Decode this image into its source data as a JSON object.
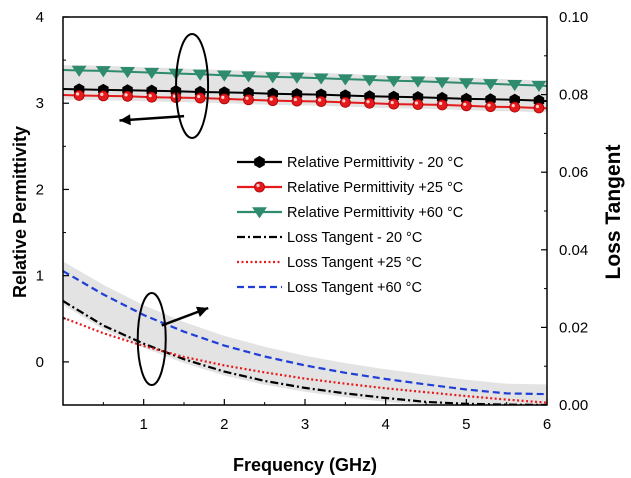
{
  "chart_data": {
    "type": "line",
    "xlabel": "Frequency (GHz)",
    "ylabel_left": "Relative Permittivity",
    "ylabel_right": "Loss Tangent",
    "xlim": [
      0,
      6
    ],
    "ylim_left": [
      -0.5,
      4
    ],
    "ylim_right": [
      0,
      0.1
    ],
    "x_ticks": [
      "1",
      "2",
      "3",
      "4",
      "5",
      "6"
    ],
    "y_left_ticks": [
      "0",
      "1",
      "2",
      "3",
      "4"
    ],
    "y_right_ticks": [
      "0.00",
      "0.02",
      "0.04",
      "0.06",
      "0.08",
      "0.10"
    ],
    "grid": false,
    "legend_position": "center-right",
    "series": [
      {
        "name": "Relative Permittivity - 20 °C",
        "axis": "left",
        "color": "#000000",
        "style": "solid",
        "marker": "hexagon",
        "x": [
          0.2,
          0.5,
          0.8,
          1.1,
          1.4,
          1.7,
          2.0,
          2.3,
          2.6,
          2.9,
          3.2,
          3.5,
          3.8,
          4.1,
          4.4,
          4.7,
          5.0,
          5.3,
          5.6,
          5.9
        ],
        "values": [
          3.16,
          3.155,
          3.15,
          3.145,
          3.14,
          3.13,
          3.125,
          3.12,
          3.11,
          3.105,
          3.1,
          3.09,
          3.08,
          3.075,
          3.07,
          3.06,
          3.05,
          3.045,
          3.04,
          3.03
        ]
      },
      {
        "name": "Relative Permittivity +25 °C",
        "axis": "left",
        "color": "#e41a1c",
        "style": "solid",
        "marker": "circle",
        "x": [
          0.2,
          0.5,
          0.8,
          1.1,
          1.4,
          1.7,
          2.0,
          2.3,
          2.6,
          2.9,
          3.2,
          3.5,
          3.8,
          4.1,
          4.4,
          4.7,
          5.0,
          5.3,
          5.6,
          5.9
        ],
        "values": [
          3.09,
          3.085,
          3.08,
          3.07,
          3.065,
          3.06,
          3.05,
          3.04,
          3.03,
          3.025,
          3.02,
          3.01,
          3.0,
          2.99,
          2.985,
          2.98,
          2.97,
          2.96,
          2.955,
          2.945
        ]
      },
      {
        "name": "Relative Permittivity +60 °C",
        "axis": "left",
        "color": "#2e8b6e",
        "style": "solid",
        "marker": "triangle-down",
        "x": [
          0.2,
          0.5,
          0.8,
          1.1,
          1.4,
          1.7,
          2.0,
          2.3,
          2.6,
          2.9,
          3.2,
          3.5,
          3.8,
          4.1,
          4.4,
          4.7,
          5.0,
          5.3,
          5.6,
          5.9
        ],
        "values": [
          3.38,
          3.375,
          3.365,
          3.355,
          3.345,
          3.335,
          3.325,
          3.315,
          3.305,
          3.3,
          3.29,
          3.28,
          3.27,
          3.26,
          3.255,
          3.245,
          3.235,
          3.225,
          3.215,
          3.205
        ]
      },
      {
        "name": "Loss Tangent - 20 °C",
        "axis": "right",
        "color": "#000000",
        "style": "dashdot",
        "marker": "none",
        "x": [
          0,
          0.5,
          1.0,
          1.5,
          2.0,
          2.5,
          3.0,
          3.5,
          4.0,
          4.5,
          5.0,
          5.5,
          6.0
        ],
        "values": [
          0.0268,
          0.0205,
          0.0158,
          0.0118,
          0.0086,
          0.0062,
          0.0044,
          0.003,
          0.0018,
          0.0008,
          0.0003,
          0.0001,
          0.0
        ]
      },
      {
        "name": "Loss Tangent +25 °C",
        "axis": "right",
        "color": "#e41a1c",
        "style": "dotted",
        "marker": "none",
        "x": [
          0,
          0.5,
          1.0,
          1.5,
          2.0,
          2.5,
          3.0,
          3.5,
          4.0,
          4.5,
          5.0,
          5.5,
          6.0
        ],
        "values": [
          0.0225,
          0.0185,
          0.0152,
          0.0124,
          0.0102,
          0.0084,
          0.0068,
          0.0055,
          0.0043,
          0.0033,
          0.0023,
          0.0014,
          0.0006
        ]
      },
      {
        "name": "Loss Tangent +60 °C",
        "axis": "right",
        "color": "#1f3fd6",
        "style": "dashed",
        "marker": "none",
        "x": [
          0,
          0.5,
          1.0,
          1.5,
          2.0,
          2.5,
          3.0,
          3.5,
          4.0,
          4.5,
          5.0,
          5.5,
          6.0
        ],
        "values": [
          0.0345,
          0.0285,
          0.0232,
          0.0189,
          0.0153,
          0.0125,
          0.0102,
          0.0083,
          0.0067,
          0.0053,
          0.004,
          0.003,
          0.0028
        ]
      }
    ]
  }
}
